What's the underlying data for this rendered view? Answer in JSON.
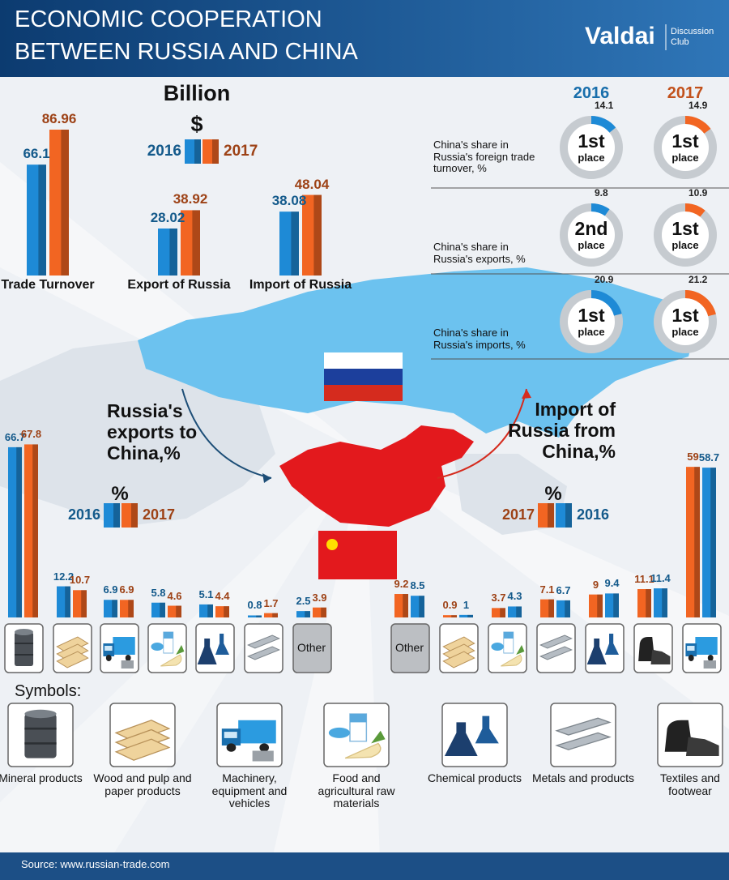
{
  "header": {
    "title_lines": [
      "ECONOMIC COOPERATION",
      "BETWEEN RUSSIA AND CHINA"
    ],
    "brand": "Valdai",
    "brand_sub": [
      "Discussion",
      "Club"
    ]
  },
  "chart_data": [
    {
      "type": "bar",
      "title": "Billion",
      "unit": "$",
      "categories": [
        "Trade Turnover",
        "Export of Russia",
        "Import of Russia"
      ],
      "series": [
        {
          "name": "2016",
          "color": "#1e8ad6",
          "values": [
            66.1,
            28.02,
            38.08
          ]
        },
        {
          "name": "2017",
          "color": "#f26522",
          "values": [
            86.96,
            38.92,
            48.04
          ]
        }
      ]
    },
    {
      "type": "donut",
      "categories": [
        "China's share in Russia's foreign trade turnover, %",
        "China's share in Russia's exports, %",
        "China's share in Russia's imports, %"
      ],
      "place_word": "place",
      "series": [
        {
          "name": "2016",
          "color": "#1e8ad6",
          "values": [
            14.1,
            9.8,
            20.9
          ],
          "places": [
            "1st",
            "2nd",
            "1st"
          ]
        },
        {
          "name": "2017",
          "color": "#f26522",
          "values": [
            14.9,
            10.9,
            21.2
          ],
          "places": [
            "1st",
            "1st",
            "1st"
          ]
        }
      ]
    },
    {
      "type": "bar",
      "title": "Russia's exports to China,%",
      "unit": "%",
      "categories": [
        null,
        null,
        null,
        null,
        null,
        null,
        "Other"
      ],
      "series": [
        {
          "name": "2016",
          "color": "#1e8ad6",
          "values": [
            66.7,
            12.2,
            6.9,
            5.8,
            5.1,
            0.8,
            2.5
          ]
        },
        {
          "name": "2017",
          "color": "#f26522",
          "values": [
            67.8,
            10.7,
            6.9,
            4.6,
            4.4,
            1.7,
            3.9
          ]
        }
      ]
    },
    {
      "type": "bar",
      "title": "Import of Russia from China,%",
      "unit": "%",
      "categories": [
        "Other",
        null,
        null,
        null,
        null,
        null,
        null
      ],
      "series": [
        {
          "name": "2017",
          "color": "#f26522",
          "values": [
            9.2,
            0.9,
            3.7,
            7.1,
            9,
            11.1,
            59
          ]
        },
        {
          "name": "2016",
          "color": "#1e8ad6",
          "values": [
            8.5,
            1,
            4.3,
            6.7,
            9.4,
            11.4,
            58.7
          ]
        }
      ]
    }
  ],
  "symbols_title": "Symbols:",
  "symbols": [
    "Mineral products",
    "Wood and pulp and paper products",
    "Machinery, equipment and vehicles",
    "Food and agricultural raw materials",
    "Chemical products",
    "Metals and products",
    "Textiles and footwear"
  ],
  "source": "Source: www.russian-trade.com"
}
